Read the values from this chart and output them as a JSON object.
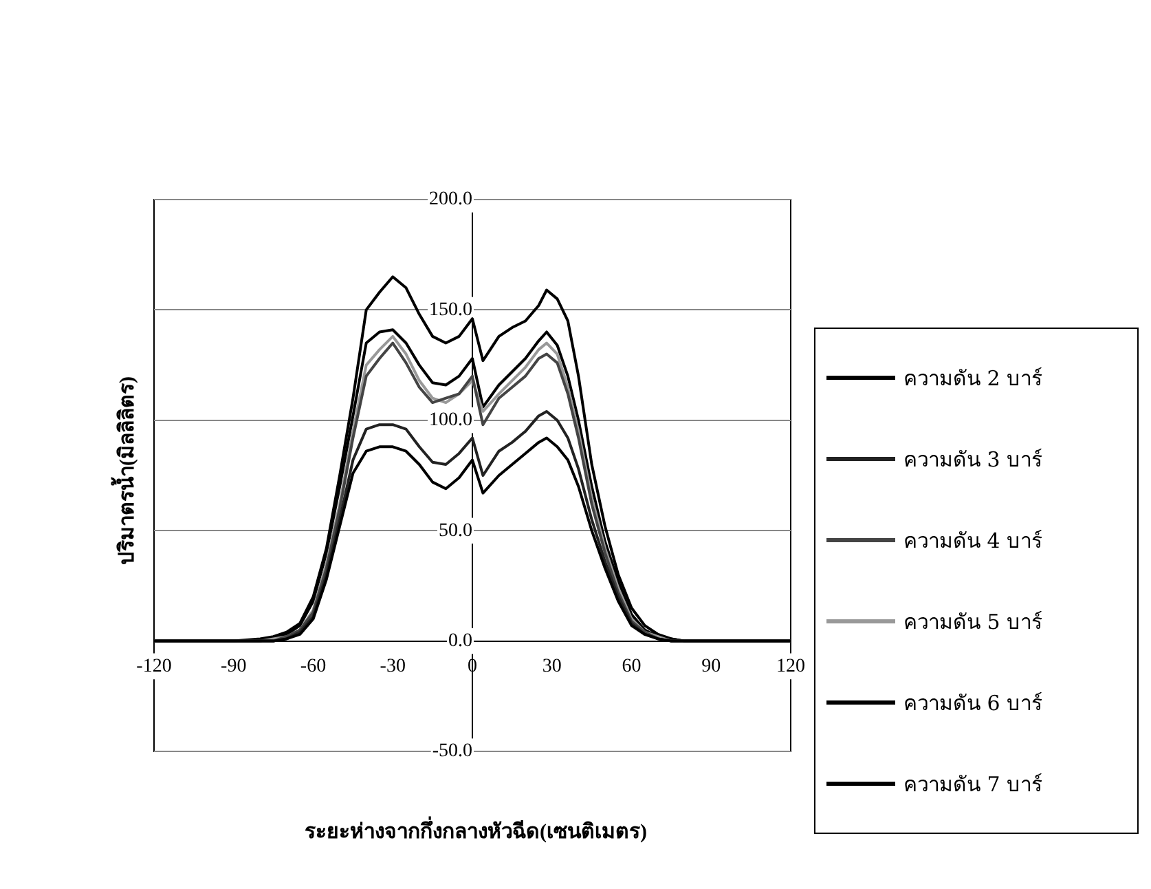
{
  "chart_data": {
    "type": "line",
    "xlabel": "ระยะห่างจากกึ่งกลางหัวฉีด(เซนติเมตร)",
    "ylabel": "ปริมาตรน้ำ(มิลลิลิตร)",
    "x": [
      -120,
      -90,
      -80,
      -75,
      -70,
      -65,
      -60,
      -55,
      -50,
      -45,
      -40,
      -35,
      -30,
      -25,
      -20,
      -15,
      -10,
      -5,
      0,
      4,
      10,
      15,
      20,
      25,
      28,
      32,
      36,
      40,
      45,
      50,
      55,
      60,
      65,
      70,
      75,
      80,
      90,
      120
    ],
    "series": [
      {
        "name": "ความดัน 2 บาร์",
        "color": "#000000",
        "values": [
          0,
          0,
          0,
          0,
          1,
          3,
          10,
          28,
          52,
          76,
          86,
          88,
          88,
          86,
          80,
          72,
          69,
          74,
          82,
          67,
          75,
          80,
          85,
          90,
          92,
          88,
          82,
          70,
          50,
          33,
          18,
          7,
          3,
          1,
          0,
          0,
          0,
          0
        ]
      },
      {
        "name": "ความดัน 3 บาร์",
        "color": "#222222",
        "values": [
          0,
          0,
          0,
          0,
          1,
          4,
          11,
          30,
          55,
          82,
          96,
          98,
          98,
          96,
          88,
          81,
          80,
          85,
          92,
          75,
          86,
          90,
          95,
          102,
          104,
          100,
          92,
          78,
          55,
          36,
          20,
          8,
          3,
          1,
          0,
          0,
          0,
          0
        ]
      },
      {
        "name": "ความดัน 4 บาร์",
        "color": "#444444",
        "values": [
          0,
          0,
          0,
          0,
          2,
          5,
          13,
          33,
          60,
          92,
          120,
          128,
          135,
          126,
          115,
          108,
          110,
          112,
          120,
          98,
          110,
          115,
          120,
          128,
          130,
          126,
          112,
          92,
          62,
          40,
          22,
          9,
          4,
          1,
          0,
          0,
          0,
          0
        ]
      },
      {
        "name": "ความดัน 5 บาร์",
        "color": "#999999",
        "values": [
          0,
          0,
          0,
          1,
          2,
          5,
          14,
          35,
          62,
          95,
          125,
          132,
          138,
          130,
          118,
          110,
          108,
          112,
          118,
          104,
          112,
          118,
          124,
          132,
          135,
          130,
          115,
          95,
          65,
          42,
          24,
          10,
          4,
          2,
          0,
          0,
          0,
          0
        ]
      },
      {
        "name": "ความดัน 6 บาร์",
        "color": "#000000",
        "values": [
          0,
          0,
          0,
          1,
          3,
          7,
          18,
          40,
          70,
          102,
          135,
          140,
          141,
          135,
          125,
          117,
          116,
          120,
          128,
          106,
          116,
          122,
          128,
          136,
          140,
          134,
          120,
          100,
          70,
          45,
          27,
          12,
          5,
          2,
          1,
          0,
          0,
          0
        ]
      },
      {
        "name": "ความดัน 7 บาร์",
        "color": "#000000",
        "values": [
          0,
          0,
          1,
          2,
          4,
          8,
          20,
          42,
          75,
          110,
          150,
          158,
          165,
          160,
          148,
          138,
          135,
          138,
          146,
          127,
          138,
          142,
          145,
          152,
          159,
          155,
          145,
          120,
          80,
          52,
          30,
          15,
          7,
          3,
          1,
          0,
          0,
          0
        ]
      }
    ],
    "xlim": [
      -120,
      120
    ],
    "xticks": [
      -120,
      -90,
      -60,
      -30,
      0,
      30,
      60,
      90,
      120
    ],
    "ylim": [
      -50,
      200
    ],
    "yticks": [
      {
        "value": -50,
        "label": "-50.0"
      },
      {
        "value": 0,
        "label": "0.0"
      },
      {
        "value": 50,
        "label": "50.0"
      },
      {
        "value": 100,
        "label": "100.0"
      },
      {
        "value": 150,
        "label": "150.0"
      },
      {
        "value": 200,
        "label": "200.0"
      }
    ],
    "grid": "y",
    "legend": "right",
    "marker": "none",
    "line_style": "solid"
  }
}
